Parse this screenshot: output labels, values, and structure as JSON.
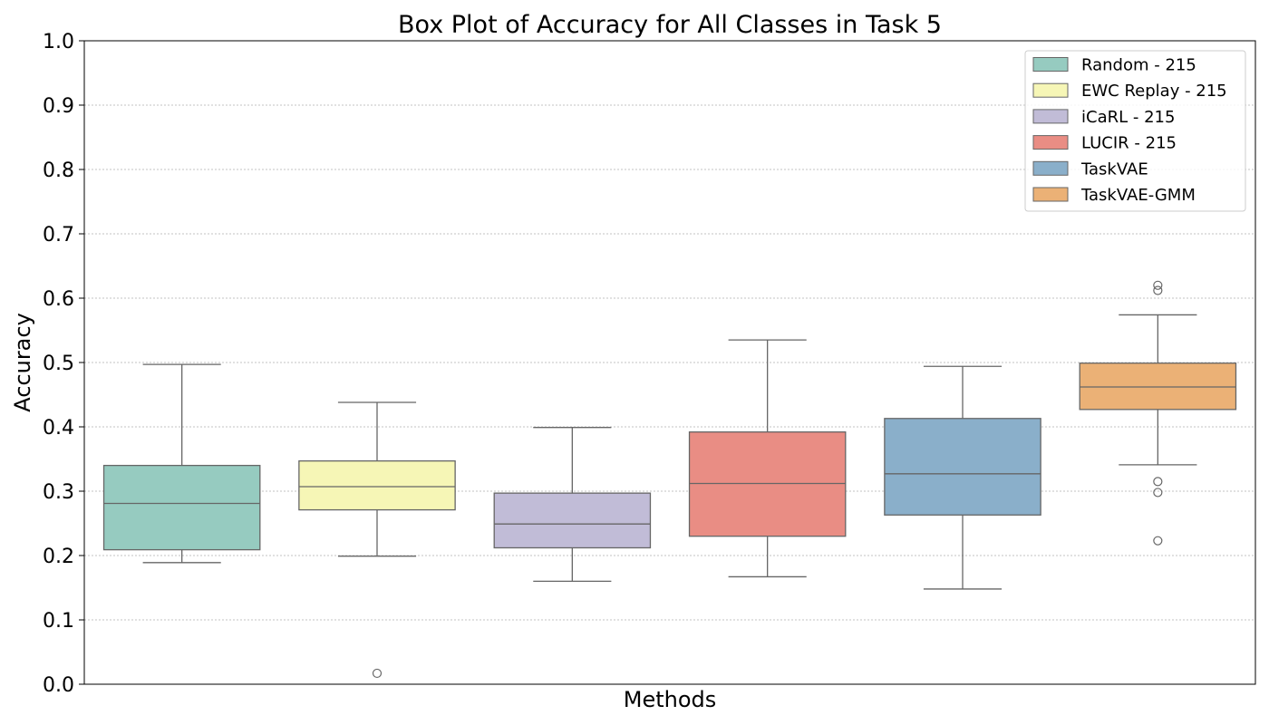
{
  "chart_data": {
    "type": "box",
    "title": "Box Plot of Accuracy for All Classes in Task 5",
    "xlabel": "Methods",
    "ylabel": "Accuracy",
    "ylim": [
      0.0,
      1.0
    ],
    "yticks": [
      "0.0",
      "0.1",
      "0.2",
      "0.3",
      "0.4",
      "0.5",
      "0.6",
      "0.7",
      "0.8",
      "0.9",
      "1.0"
    ],
    "grid": "horizontal dotted",
    "legend_position": "top-right",
    "series": [
      {
        "name": "Random - 215",
        "color": "#96CBC0",
        "whisker_low": 0.189,
        "q1": 0.209,
        "median": 0.281,
        "q3": 0.34,
        "whisker_high": 0.497,
        "outliers": []
      },
      {
        "name": "EWC Replay - 215",
        "color": "#F6F6B6",
        "whisker_low": 0.199,
        "q1": 0.271,
        "median": 0.307,
        "q3": 0.347,
        "whisker_high": 0.438,
        "outliers": [
          0.017
        ]
      },
      {
        "name": "iCaRL - 215",
        "color": "#C1BCD7",
        "whisker_low": 0.16,
        "q1": 0.212,
        "median": 0.249,
        "q3": 0.297,
        "whisker_high": 0.399,
        "outliers": []
      },
      {
        "name": "LUCIR - 215",
        "color": "#E98D84",
        "whisker_low": 0.167,
        "q1": 0.23,
        "median": 0.312,
        "q3": 0.392,
        "whisker_high": 0.535,
        "outliers": []
      },
      {
        "name": "TaskVAE",
        "color": "#8AAFCA",
        "whisker_low": 0.148,
        "q1": 0.263,
        "median": 0.327,
        "q3": 0.413,
        "whisker_high": 0.494,
        "outliers": []
      },
      {
        "name": "TaskVAE-GMM",
        "color": "#EBB176",
        "whisker_low": 0.341,
        "q1": 0.427,
        "median": 0.462,
        "q3": 0.499,
        "whisker_high": 0.574,
        "outliers": [
          0.62,
          0.612,
          0.315,
          0.298,
          0.223
        ]
      }
    ]
  }
}
